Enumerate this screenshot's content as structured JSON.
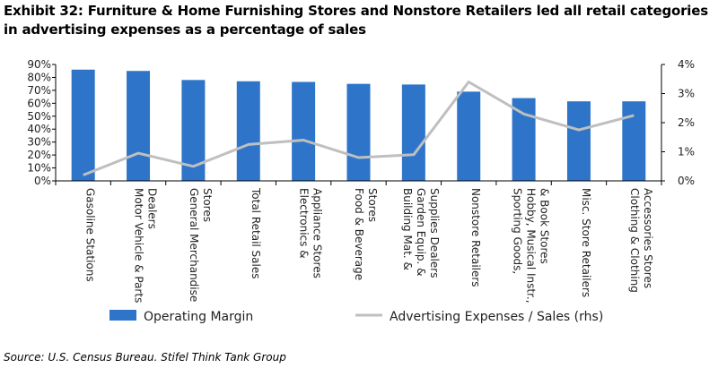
{
  "title": "Exhibit 32: Furniture & Home Furnishing Stores and Nonstore Retailers led all retail categories in advertising expenses as a percentage of sales",
  "source": "Source: U.S. Census Bureau. Stifel Think Tank Group",
  "chart_data": {
    "type": "bar",
    "categories": [
      "Gasoline Stations",
      "Motor Vehicle & Parts Dealers",
      "General Merchandise Stores",
      "Total Retail Sales",
      "Electronics & Appliance Stores",
      "Food & Beverage Stores",
      "Building Mat. & Garden Equip. & Supplies Dealers",
      "Nonstore Retailers",
      "Sporting Goods, Hobby, Musical Instr., & Book Stores",
      "Misc. Store Retailers",
      "Clothing & Clothing Accessories Stores"
    ],
    "category_lines": [
      [
        "Gasoline Stations"
      ],
      [
        "Motor Vehicle & Parts",
        "Dealers"
      ],
      [
        "General Merchandise",
        "Stores"
      ],
      [
        "Total Retail Sales"
      ],
      [
        "Electronics &",
        "Appliance Stores"
      ],
      [
        "Food & Beverage",
        "Stores"
      ],
      [
        "Building Mat. &",
        "Garden Equip. &",
        "Supplies Dealers"
      ],
      [
        "Nonstore Retailers"
      ],
      [
        "Sporting Goods,",
        "Hobby, Musical Instr.,",
        "& Book Stores"
      ],
      [
        "Misc. Store Retailers"
      ],
      [
        "Clothing & Clothing",
        "Accessories Stores"
      ]
    ],
    "series": [
      {
        "name": "Operating Margin",
        "type": "bar",
        "axis": "left",
        "color": "#2e75c9",
        "values": [
          86,
          85,
          78,
          77,
          76.5,
          75,
          74.5,
          69,
          64,
          61.5,
          61.5
        ]
      },
      {
        "name": "Advertising Expenses / Sales (rhs)",
        "type": "line",
        "axis": "right",
        "color": "#bfbfbf",
        "values": [
          0.2,
          0.95,
          0.5,
          1.25,
          1.4,
          0.8,
          0.9,
          3.4,
          2.3,
          1.75,
          2.25
        ]
      }
    ],
    "y_left": {
      "min": 0,
      "max": 90,
      "step": 10,
      "format": "percent0"
    },
    "y_right": {
      "min": 0,
      "max": 4,
      "step": 1,
      "format": "percent0"
    },
    "legend_position": "bottom",
    "grid": false
  }
}
